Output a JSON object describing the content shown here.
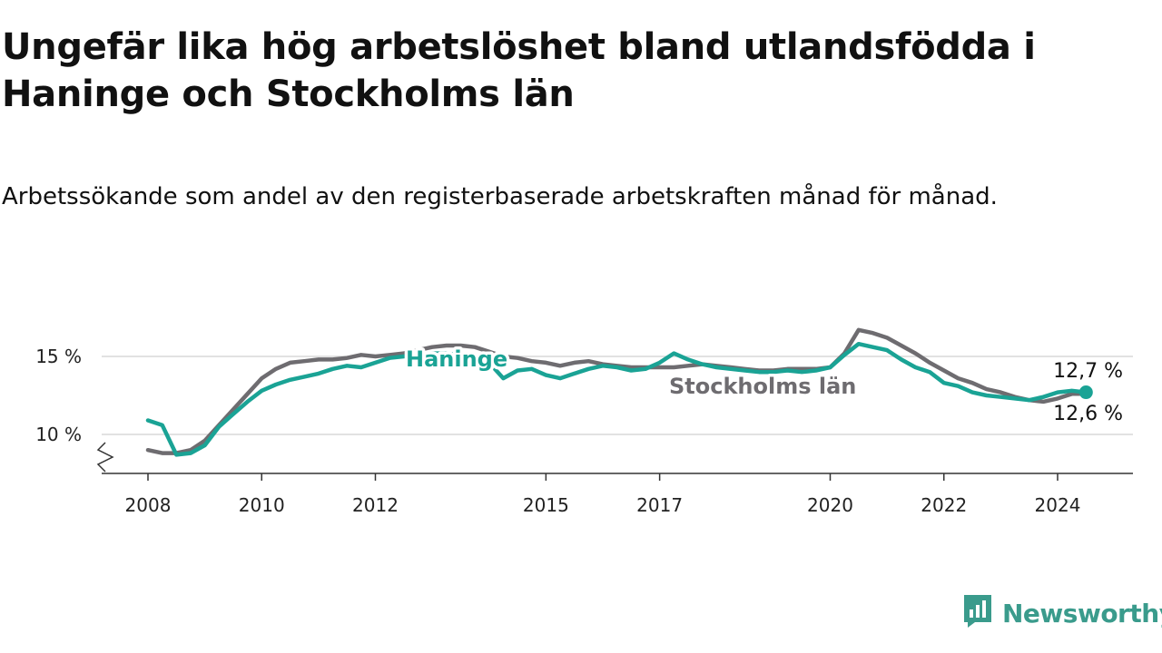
{
  "title": "Ungefär lika hög arbetslöshet bland utlandsfödda i Haninge och Stockholms län",
  "subtitle": "Arbetssökande som andel av den registerbaserade arbetskraften månad för månad.",
  "brand": {
    "name": "Newsworthy",
    "icon": "newsworthy-logo-icon",
    "color": "#3a9b8c"
  },
  "chart_data": {
    "type": "line",
    "title": "Ungefär lika hög arbetslöshet bland utlandsfödda i Haninge och Stockholms län",
    "subtitle": "Arbetssökande som andel av den registerbaserade arbetskraften månad för månad.",
    "xlabel": "",
    "ylabel": "",
    "xlim": [
      2008,
      2025.3
    ],
    "ylim": [
      8.3,
      17
    ],
    "axis_break": true,
    "grid": "horizontal",
    "y_ticks": [
      {
        "value": 10,
        "label": "10 %"
      },
      {
        "value": 15,
        "label": "15 %"
      }
    ],
    "x_ticks": [
      {
        "value": 2008,
        "label": "2008"
      },
      {
        "value": 2010,
        "label": "2010"
      },
      {
        "value": 2012,
        "label": "2012"
      },
      {
        "value": 2015,
        "label": "2015"
      },
      {
        "value": 2017,
        "label": "2017"
      },
      {
        "value": 2020,
        "label": "2020"
      },
      {
        "value": 2022,
        "label": "2022"
      },
      {
        "value": 2024,
        "label": "2024"
      }
    ],
    "series": [
      {
        "name": "Stockholms län",
        "label": "Stockholms län",
        "color": "#6e6c70",
        "x": [
          2008.0,
          2008.25,
          2008.5,
          2008.75,
          2009.0,
          2009.25,
          2009.5,
          2009.75,
          2010.0,
          2010.25,
          2010.5,
          2010.75,
          2011.0,
          2011.25,
          2011.5,
          2011.75,
          2012.0,
          2012.25,
          2012.5,
          2012.75,
          2013.0,
          2013.25,
          2013.5,
          2013.75,
          2014.0,
          2014.25,
          2014.5,
          2014.75,
          2015.0,
          2015.25,
          2015.5,
          2015.75,
          2016.0,
          2016.25,
          2016.5,
          2016.75,
          2017.0,
          2017.25,
          2017.5,
          2017.75,
          2018.0,
          2018.25,
          2018.5,
          2018.75,
          2019.0,
          2019.25,
          2019.5,
          2019.75,
          2020.0,
          2020.25,
          2020.5,
          2020.75,
          2021.0,
          2021.25,
          2021.5,
          2021.75,
          2022.0,
          2022.25,
          2022.5,
          2022.75,
          2023.0,
          2023.25,
          2023.5,
          2023.75,
          2024.0,
          2024.25,
          2024.5
        ],
        "values": [
          9.0,
          8.8,
          8.8,
          9.0,
          9.6,
          10.6,
          11.6,
          12.6,
          13.6,
          14.2,
          14.6,
          14.7,
          14.8,
          14.8,
          14.9,
          15.1,
          15.0,
          15.1,
          15.2,
          15.4,
          15.6,
          15.7,
          15.7,
          15.6,
          15.3,
          15.0,
          14.9,
          14.7,
          14.6,
          14.4,
          14.6,
          14.7,
          14.5,
          14.4,
          14.3,
          14.3,
          14.3,
          14.3,
          14.4,
          14.5,
          14.4,
          14.3,
          14.2,
          14.1,
          14.1,
          14.2,
          14.2,
          14.2,
          14.3,
          15.2,
          16.7,
          16.5,
          16.2,
          15.7,
          15.2,
          14.6,
          14.1,
          13.6,
          13.3,
          12.9,
          12.7,
          12.4,
          12.2,
          12.1,
          12.3,
          12.6,
          12.6
        ],
        "end_value_label": "12,6 %"
      },
      {
        "name": "Haninge",
        "label": "Haninge",
        "color": "#1aa395",
        "x": [
          2008.0,
          2008.25,
          2008.5,
          2008.75,
          2009.0,
          2009.25,
          2009.5,
          2009.75,
          2010.0,
          2010.25,
          2010.5,
          2010.75,
          2011.0,
          2011.25,
          2011.5,
          2011.75,
          2012.0,
          2012.25,
          2012.5,
          2012.75,
          2013.0,
          2013.25,
          2013.5,
          2013.75,
          2014.0,
          2014.25,
          2014.5,
          2014.75,
          2015.0,
          2015.25,
          2015.5,
          2015.75,
          2016.0,
          2016.25,
          2016.5,
          2016.75,
          2017.0,
          2017.25,
          2017.5,
          2017.75,
          2018.0,
          2018.25,
          2018.5,
          2018.75,
          2019.0,
          2019.25,
          2019.5,
          2019.75,
          2020.0,
          2020.25,
          2020.5,
          2020.75,
          2021.0,
          2021.25,
          2021.5,
          2021.75,
          2022.0,
          2022.25,
          2022.5,
          2022.75,
          2023.0,
          2023.25,
          2023.5,
          2023.75,
          2024.0,
          2024.25,
          2024.5
        ],
        "values": [
          10.9,
          10.6,
          8.7,
          8.8,
          9.3,
          10.5,
          11.3,
          12.1,
          12.8,
          13.2,
          13.5,
          13.7,
          13.9,
          14.2,
          14.4,
          14.3,
          14.6,
          14.9,
          15.0,
          15.1,
          15.2,
          15.2,
          15.1,
          14.9,
          14.6,
          13.6,
          14.1,
          14.2,
          13.8,
          13.6,
          13.9,
          14.2,
          14.4,
          14.3,
          14.1,
          14.2,
          14.6,
          15.2,
          14.8,
          14.5,
          14.3,
          14.2,
          14.1,
          14.0,
          14.0,
          14.1,
          14.0,
          14.1,
          14.3,
          15.1,
          15.8,
          15.6,
          15.4,
          14.8,
          14.3,
          14.0,
          13.3,
          13.1,
          12.7,
          12.5,
          12.4,
          12.3,
          12.2,
          12.4,
          12.7,
          12.8,
          12.7
        ],
        "end_value_label": "12,7 %"
      }
    ]
  }
}
